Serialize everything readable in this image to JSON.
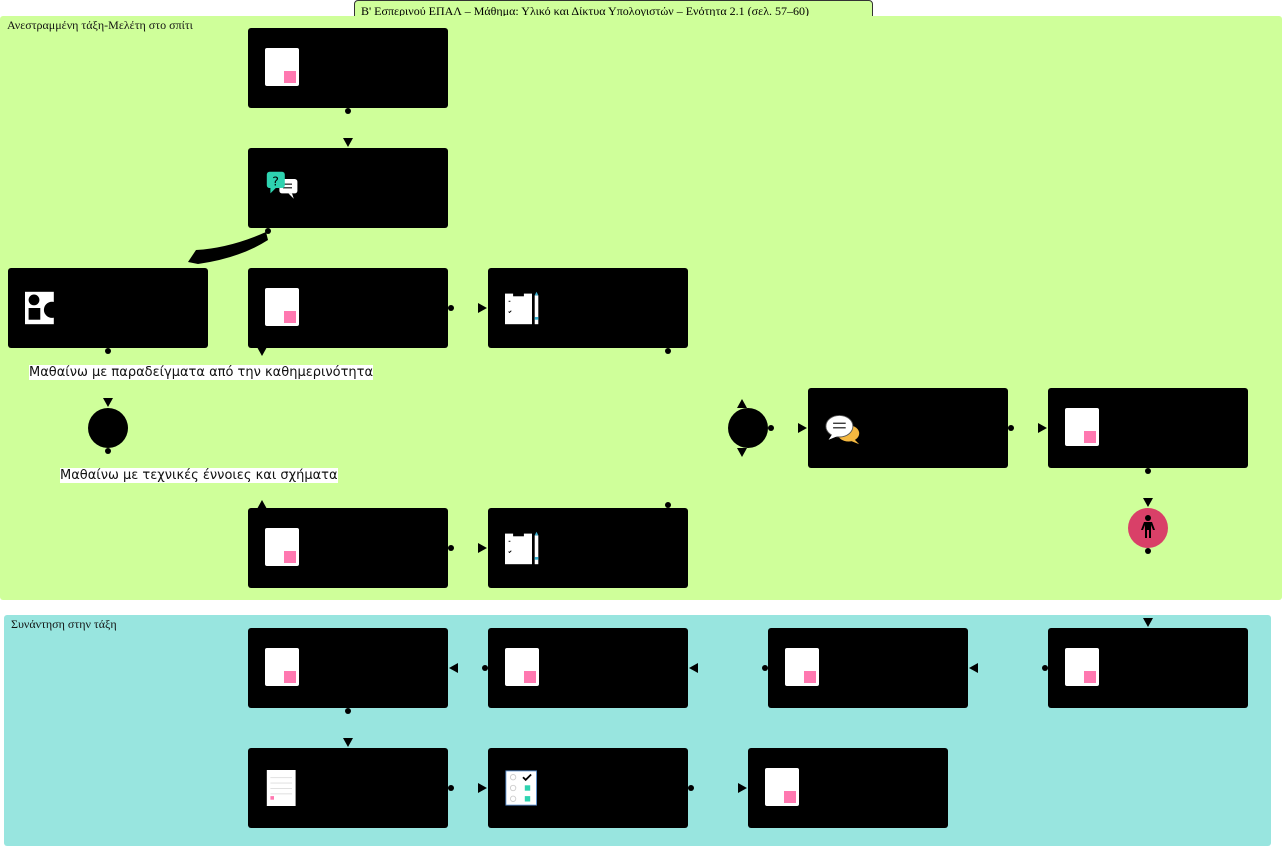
{
  "title": "Β' Εσπερινού ΕΠΑΛ – Μάθημα: Υλικό και Δίκτυα Υπολογιστών – Ενότητα 2.1 (σελ. 57–60)",
  "lanes": {
    "home": "Ανεστραμμένη τάξη-Μελέτη στο σπίτι",
    "class": "Συνάντηση στην τάξη"
  },
  "labels": {
    "everyday": "Μαθαίνω με παραδείγματα από την καθημερινότητα",
    "technical": "Μαθαίνω με τεχνικές έννοιες και σχήματα"
  },
  "colors": {
    "home_lane": "#cfff9a",
    "class_lane": "#98e5df",
    "node": "#000000",
    "doc_accent": "#ff78b0",
    "end_node": "#d94068"
  },
  "nodes": [
    {
      "icon": "document-icon"
    },
    {
      "icon": "question-chat-icon"
    },
    {
      "icon": "shapes-icon"
    },
    {
      "icon": "document-icon"
    },
    {
      "icon": "clipboard-icon"
    },
    {
      "icon": "discussion-icon"
    },
    {
      "icon": "document-icon"
    },
    {
      "icon": "document-icon"
    },
    {
      "icon": "clipboard-icon"
    },
    {
      "icon": "document-icon"
    },
    {
      "icon": "document-icon"
    },
    {
      "icon": "document-icon"
    },
    {
      "icon": "document-icon"
    },
    {
      "icon": "list-document-icon"
    },
    {
      "icon": "checklist-icon"
    },
    {
      "icon": "document-icon"
    }
  ]
}
